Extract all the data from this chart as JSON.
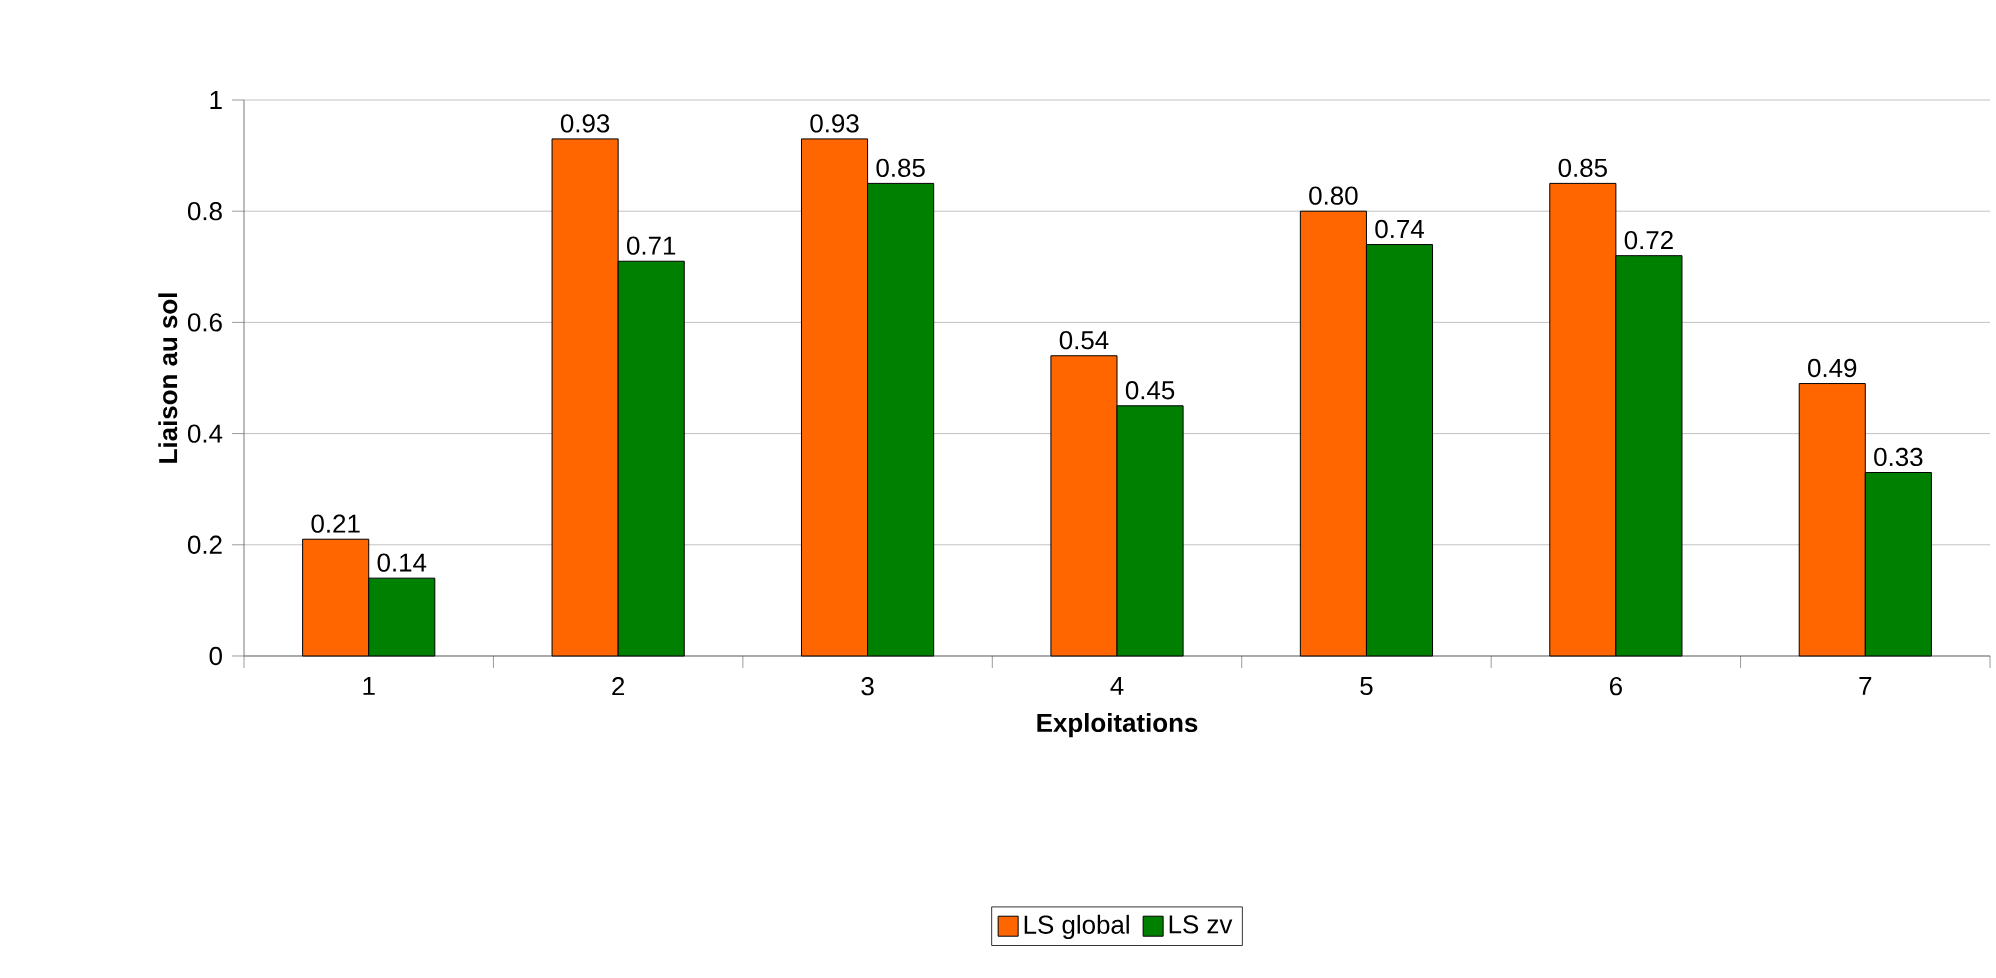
{
  "chart_data": {
    "type": "bar",
    "xlabel": "Exploitations",
    "ylabel": "Liaison au sol",
    "categories": [
      "1",
      "2",
      "3",
      "4",
      "5",
      "6",
      "7"
    ],
    "series": [
      {
        "name": "LS global",
        "color": "#ff6600",
        "values": [
          0.21,
          0.93,
          0.93,
          0.54,
          0.8,
          0.85,
          0.49
        ],
        "value_labels": [
          "0.21",
          "0.93",
          "0.93",
          "0.54",
          "0.80",
          "0.85",
          "0.49"
        ]
      },
      {
        "name": "LS zv",
        "color": "#008000",
        "values": [
          0.14,
          0.71,
          0.85,
          0.45,
          0.74,
          0.72,
          0.33
        ],
        "value_labels": [
          "0.14",
          "0.71",
          "0.85",
          "0.45",
          "0.74",
          "0.72",
          "0.33"
        ]
      }
    ],
    "ylim": [
      0,
      1
    ],
    "yticks": [
      0,
      0.2,
      0.4,
      0.6,
      0.8,
      1
    ],
    "grid": "y",
    "legend": "bottom"
  }
}
